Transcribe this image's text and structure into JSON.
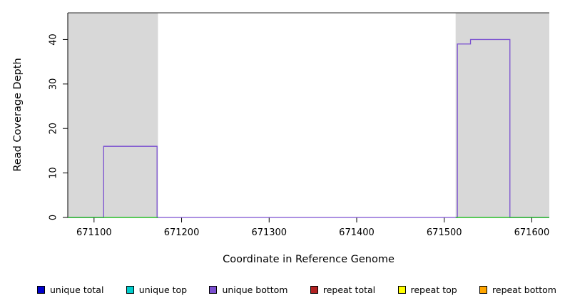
{
  "figure": {
    "background": "#ffffff"
  },
  "chart_data": {
    "type": "line",
    "subtype": "step-coverage-plot",
    "title": "",
    "xlabel": "Coordinate in Reference Genome",
    "ylabel": "Read Coverage Depth",
    "xlim": [
      671070,
      671620
    ],
    "ylim": [
      0,
      46
    ],
    "x_ticks": [
      671100,
      671200,
      671300,
      671400,
      671500,
      671600
    ],
    "y_ticks": [
      0,
      10,
      20,
      30,
      40
    ],
    "grid": false,
    "plot_border_top": true,
    "border_color": "#2b2b2b",
    "shaded_region_color": "#d8d8d8",
    "shaded_regions": [
      {
        "name": "left-gray-region",
        "x0": 671070,
        "x1": 671173
      },
      {
        "name": "right-gray-region",
        "x0": 671513,
        "x1": 671620
      }
    ],
    "series": [
      {
        "name": "unique-bottom-coverage",
        "color": "#7a4fd0",
        "width": 1.3,
        "paths": [
          [
            [
              671070,
              0
            ],
            [
              671111,
              0
            ],
            [
              671111,
              16
            ],
            [
              671172,
              16
            ],
            [
              671172,
              0
            ],
            [
              671515,
              0
            ],
            [
              671515,
              39
            ],
            [
              671530,
              39
            ],
            [
              671530,
              40
            ],
            [
              671575,
              40
            ],
            [
              671575,
              0
            ],
            [
              671620,
              0
            ]
          ]
        ]
      },
      {
        "name": "baseline-green",
        "color": "#00b400",
        "width": 1.2,
        "paths": [
          [
            [
              671070,
              0
            ],
            [
              671173,
              0
            ]
          ],
          [
            [
              671513,
              0
            ],
            [
              671620,
              0
            ]
          ]
        ]
      }
    ]
  },
  "legend": {
    "items": [
      {
        "label": "unique total",
        "color": "#0000cc"
      },
      {
        "label": "unique top",
        "color": "#00cdcd"
      },
      {
        "label": "unique bottom",
        "color": "#7a4fd0"
      },
      {
        "label": "repeat total",
        "color": "#b22222"
      },
      {
        "label": "repeat top",
        "color": "#ffff00"
      },
      {
        "label": "repeat bottom",
        "color": "#ffa500"
      }
    ]
  }
}
